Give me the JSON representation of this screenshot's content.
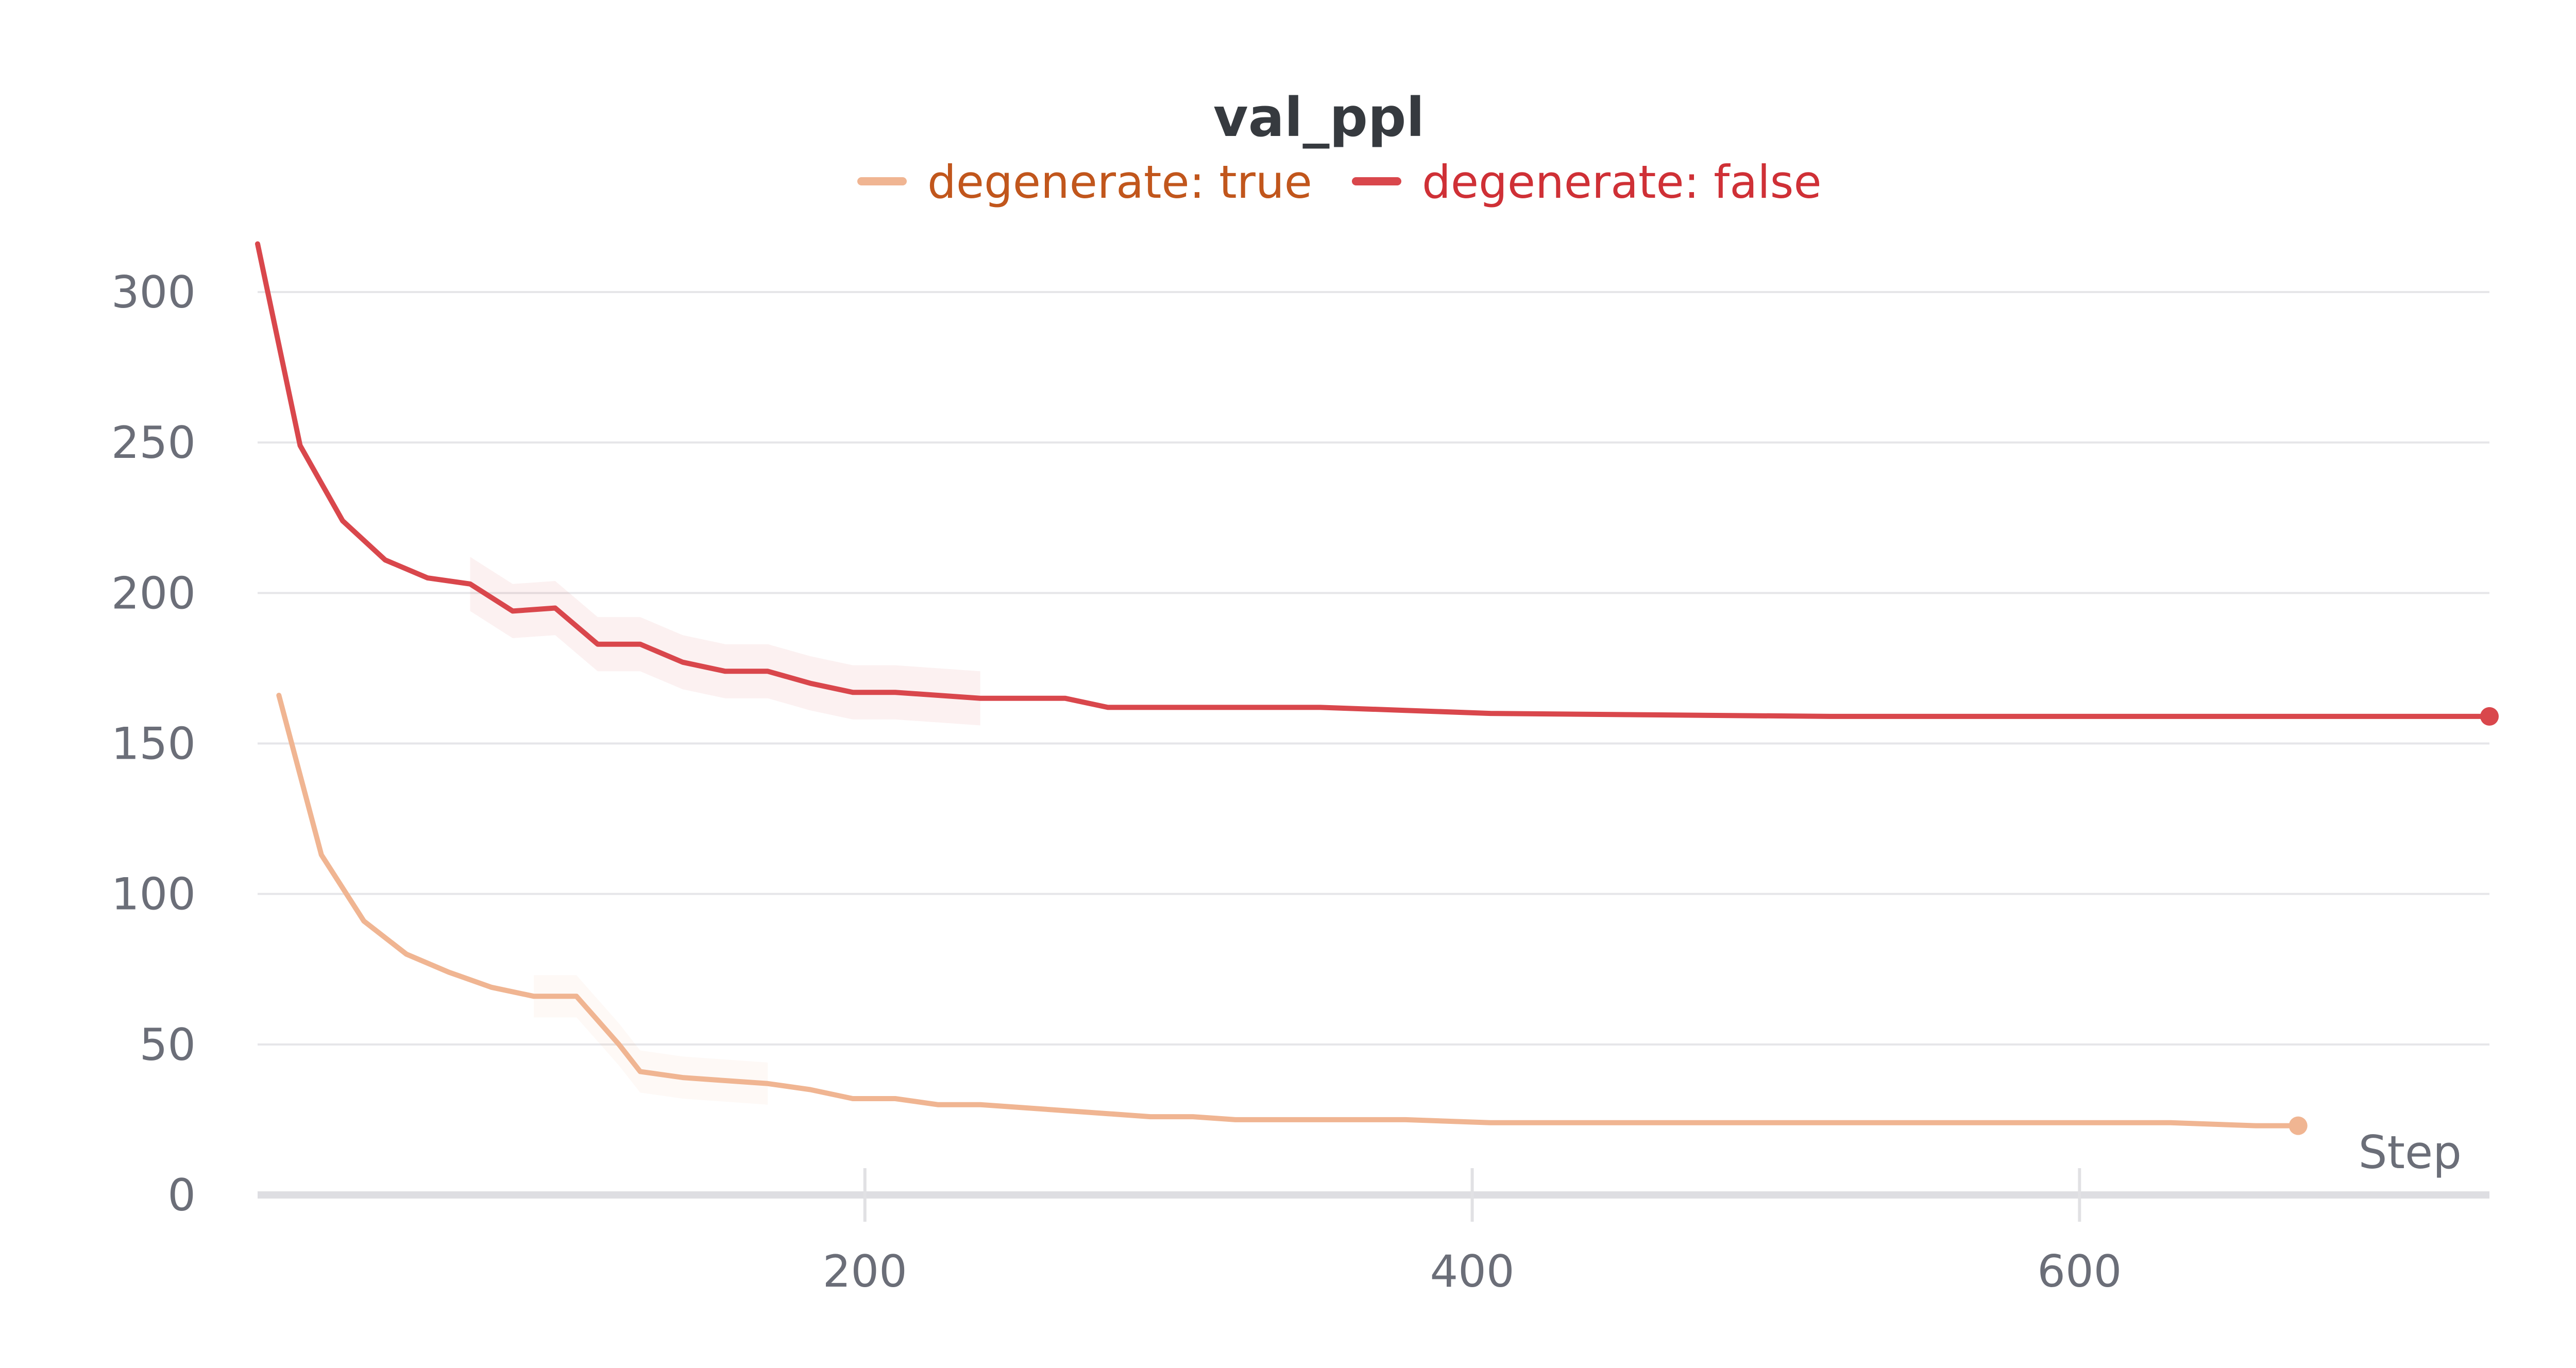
{
  "chart_data": {
    "type": "line",
    "title": "val_ppl",
    "xlabel": "Step",
    "ylabel": "",
    "xlim": [
      0,
      735
    ],
    "ylim": [
      0,
      300
    ],
    "xticks": [
      200,
      400,
      600
    ],
    "yticks": [
      0,
      50,
      100,
      150,
      200,
      250,
      300
    ],
    "grid": true,
    "legend_position": "top-center",
    "series": [
      {
        "name": "degenerate: true",
        "color": "#f0b592",
        "label_color": "#c1561c",
        "end_marker": true,
        "x": [
          7,
          21,
          35,
          49,
          63,
          77,
          91,
          105,
          119,
          126,
          140,
          154,
          168,
          182,
          196,
          210,
          224,
          238,
          252,
          266,
          280,
          294,
          308,
          322,
          350,
          378,
          406,
          434,
          462,
          490,
          518,
          546,
          574,
          602,
          630,
          658,
          672
        ],
        "y": [
          166,
          113,
          91,
          80,
          74,
          69,
          66,
          66,
          50,
          41,
          39,
          38,
          37,
          35,
          32,
          32,
          30,
          30,
          29,
          28,
          27,
          26,
          26,
          25,
          25,
          25,
          24,
          24,
          24,
          24,
          24,
          24,
          24,
          24,
          24,
          23,
          23
        ]
      },
      {
        "name": "degenerate: false",
        "color": "#d9474c",
        "label_color": "#cf3036",
        "end_marker": true,
        "x": [
          0,
          14,
          28,
          42,
          56,
          70,
          84,
          98,
          112,
          126,
          140,
          154,
          168,
          182,
          196,
          210,
          238,
          266,
          280,
          322,
          350,
          378,
          406,
          462,
          518,
          574,
          630,
          686,
          735
        ],
        "y": [
          316,
          249,
          224,
          211,
          205,
          203,
          194,
          195,
          183,
          183,
          177,
          174,
          174,
          170,
          167,
          167,
          165,
          165,
          162,
          162,
          162,
          161,
          160,
          159.5,
          159,
          159,
          159,
          159,
          159
        ]
      }
    ]
  }
}
